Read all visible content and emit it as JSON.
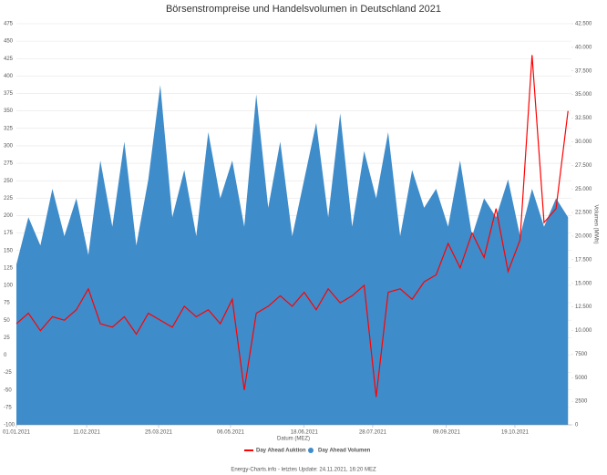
{
  "chart_data": {
    "type": "line-area",
    "title": "Börsenstrompreise und Handelsvolumen in Deutschland 2021",
    "xlabel": "Datum (MEZ)",
    "y2label": "Volumen (MWh)",
    "footer": "Energy-Charts.info - letztes Update: 24.11.2021, 16:20 MEZ",
    "x": [
      "01.01.2021",
      "08.01.2021",
      "15.01.2021",
      "22.01.2021",
      "29.01.2021",
      "05.02.2021",
      "12.02.2021",
      "19.02.2021",
      "26.02.2021",
      "05.03.2021",
      "12.03.2021",
      "19.03.2021",
      "26.03.2021",
      "02.04.2021",
      "09.04.2021",
      "16.04.2021",
      "23.04.2021",
      "30.04.2021",
      "07.05.2021",
      "14.05.2021",
      "21.05.2021",
      "28.05.2021",
      "04.06.2021",
      "11.06.2021",
      "18.06.2021",
      "25.06.2021",
      "02.07.2021",
      "09.07.2021",
      "16.07.2021",
      "23.07.2021",
      "30.07.2021",
      "06.08.2021",
      "13.08.2021",
      "20.08.2021",
      "27.08.2021",
      "03.09.2021",
      "10.09.2021",
      "17.09.2021",
      "24.09.2021",
      "01.10.2021",
      "08.10.2021",
      "15.10.2021",
      "22.10.2021",
      "29.10.2021",
      "05.11.2021",
      "12.11.2021",
      "19.11.2021"
    ],
    "xlim": [
      "01.01.2021",
      "21.11.2021"
    ],
    "xticks": [
      "01.01.2021",
      "11.02.2021",
      "25.03.2021",
      "06.05.2021",
      "18.06.2021",
      "28.07.2021",
      "09.09.2021",
      "19.10.2021"
    ],
    "ylim": [
      -100,
      475
    ],
    "yticks": [
      -100,
      -75,
      -50,
      -25,
      0,
      25,
      50,
      75,
      100,
      125,
      150,
      175,
      200,
      225,
      250,
      275,
      300,
      325,
      350,
      375,
      400,
      425,
      450,
      475
    ],
    "y2lim": [
      0,
      42500
    ],
    "y2ticks": [
      0,
      2500,
      5000,
      7500,
      {
        "value": 10000,
        "label": "10.000"
      },
      {
        "value": 12500,
        "label": "12.500"
      },
      {
        "value": 15000,
        "label": "15.000"
      },
      {
        "value": 17500,
        "label": "17.500"
      },
      {
        "value": 20000,
        "label": "20.000"
      },
      {
        "value": 22500,
        "label": "22.500"
      },
      {
        "value": 25000,
        "label": "25.000"
      },
      {
        "value": 27500,
        "label": "27.500"
      },
      {
        "value": 30000,
        "label": "30.000"
      },
      {
        "value": 32500,
        "label": "32.500"
      },
      {
        "value": 35000,
        "label": "35.000"
      },
      {
        "value": 37500,
        "label": "37.500"
      },
      {
        "value": 40000,
        "label": "40.000"
      },
      {
        "value": 42500,
        "label": "42.500"
      }
    ],
    "grid": true,
    "legend": "bottom",
    "series": [
      {
        "name": "Day Ahead Auktion",
        "color": "#ff0000",
        "axis": "y",
        "values": [
          45,
          60,
          35,
          55,
          50,
          65,
          95,
          45,
          40,
          55,
          30,
          60,
          50,
          40,
          70,
          55,
          65,
          45,
          80,
          -50,
          60,
          70,
          85,
          70,
          90,
          65,
          95,
          75,
          85,
          100,
          -60,
          90,
          95,
          80,
          105,
          115,
          160,
          125,
          175,
          140,
          210,
          120,
          165,
          430,
          190,
          210,
          350
        ]
      },
      {
        "name": "Day Ahead Volumen",
        "color": "#3f8ccb",
        "axis": "y2",
        "values": [
          17000,
          22000,
          19000,
          25000,
          20000,
          24000,
          18000,
          28000,
          21000,
          30000,
          19000,
          26000,
          36000,
          22000,
          27000,
          20000,
          31000,
          24000,
          28000,
          21000,
          35000,
          23000,
          30000,
          20000,
          26000,
          32000,
          22000,
          33000,
          21000,
          29000,
          24000,
          31000,
          20000,
          27000,
          23000,
          25000,
          21000,
          28000,
          20000,
          24000,
          22000,
          26000,
          20000,
          25000,
          21000,
          24000,
          22000
        ]
      }
    ]
  }
}
